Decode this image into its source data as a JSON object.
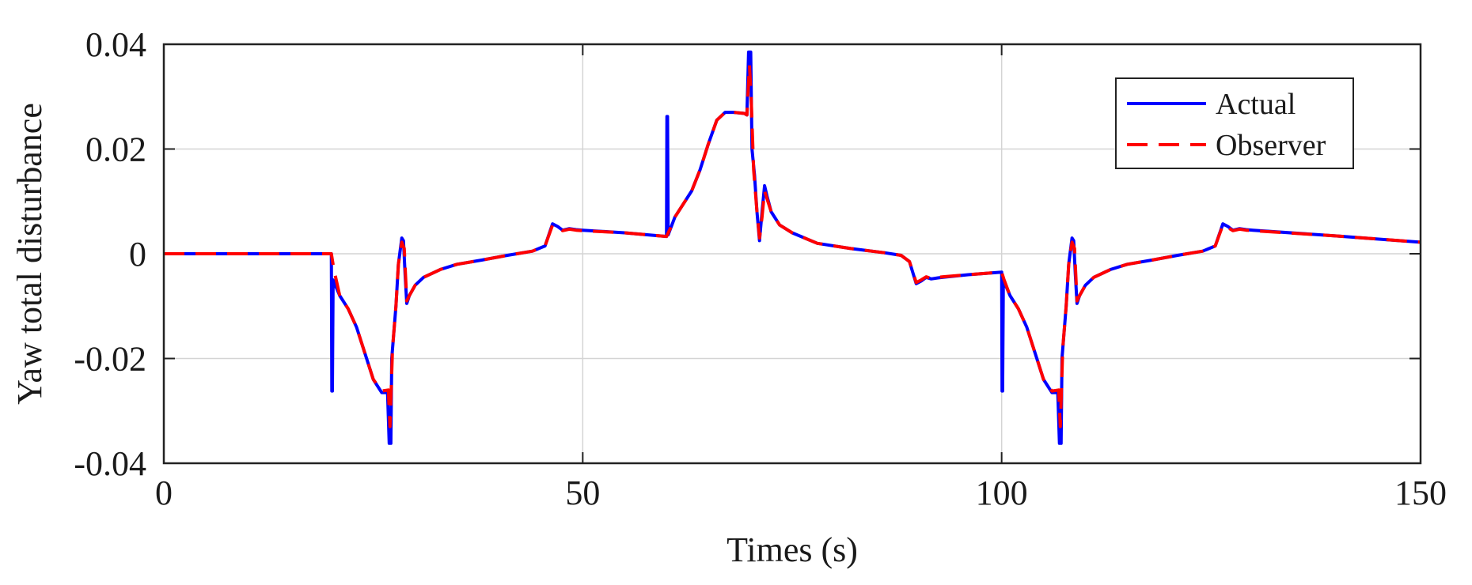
{
  "chart_data": {
    "type": "line",
    "xlabel": "Times (s)",
    "ylabel": "Yaw total disturbance",
    "xlim": [
      0,
      150
    ],
    "ylim": [
      -0.04,
      0.04
    ],
    "xticks": [
      0,
      50,
      100,
      150
    ],
    "xtick_labels": [
      "0",
      "50",
      "100",
      "150"
    ],
    "yticks": [
      0.04,
      0.02,
      0,
      -0.02,
      -0.04
    ],
    "ytick_labels": [
      "0.04",
      "0.02",
      "0",
      "-0.02",
      "-0.04"
    ],
    "grid": true,
    "legend_position": "top-right",
    "series": [
      {
        "name": "Actual",
        "color": "#0000ff",
        "style": "solid",
        "points": [
          [
            0,
            0
          ],
          [
            20,
            0
          ],
          [
            20.05,
            -0.0262
          ],
          [
            20.12,
            -0.0262
          ],
          [
            20.2,
            -0.005
          ],
          [
            21,
            -0.008
          ],
          [
            22,
            -0.0105
          ],
          [
            23,
            -0.014
          ],
          [
            24,
            -0.019
          ],
          [
            25,
            -0.024
          ],
          [
            26,
            -0.0265
          ],
          [
            26.7,
            -0.0265
          ],
          [
            26.9,
            -0.0362
          ],
          [
            27.1,
            -0.0362
          ],
          [
            27.2,
            -0.02
          ],
          [
            27.7,
            -0.01
          ],
          [
            28,
            -0.002
          ],
          [
            28.4,
            0.003
          ],
          [
            28.6,
            0.0025
          ],
          [
            28.8,
            -0.004
          ],
          [
            29,
            -0.0095
          ],
          [
            29.3,
            -0.008
          ],
          [
            30,
            -0.006
          ],
          [
            31,
            -0.0045
          ],
          [
            33,
            -0.003
          ],
          [
            35,
            -0.002
          ],
          [
            38,
            -0.0012
          ],
          [
            41,
            -0.0003
          ],
          [
            44,
            0.0005
          ],
          [
            45.5,
            0.0015
          ],
          [
            46.4,
            0.0057
          ],
          [
            47,
            0.0052
          ],
          [
            47.6,
            0.0045
          ],
          [
            48.4,
            0.0048
          ],
          [
            49.2,
            0.0046
          ],
          [
            50,
            0.0045
          ],
          [
            55,
            0.004
          ],
          [
            60,
            0.0033
          ],
          [
            60.05,
            0.0262
          ],
          [
            60.12,
            0.0262
          ],
          [
            60.2,
            0.0036
          ],
          [
            61,
            0.007
          ],
          [
            62,
            0.0095
          ],
          [
            63,
            0.012
          ],
          [
            64,
            0.016
          ],
          [
            65,
            0.021
          ],
          [
            66,
            0.0255
          ],
          [
            67,
            0.027
          ],
          [
            68,
            0.027
          ],
          [
            69.3,
            0.0268
          ],
          [
            69.6,
            0.0265
          ],
          [
            69.8,
            0.0385
          ],
          [
            70.05,
            0.0385
          ],
          [
            70.2,
            0.02
          ],
          [
            70.5,
            0.015
          ],
          [
            70.8,
            0.008
          ],
          [
            71.1,
            0.0025
          ],
          [
            71.4,
            0.008
          ],
          [
            71.7,
            0.013
          ],
          [
            72,
            0.011
          ],
          [
            72.5,
            0.008
          ],
          [
            73.5,
            0.0055
          ],
          [
            75,
            0.004
          ],
          [
            78,
            0.002
          ],
          [
            82,
            0.001
          ],
          [
            86,
            0.0002
          ],
          [
            88,
            -0.0003
          ],
          [
            89,
            -0.0015
          ],
          [
            89.8,
            -0.0057
          ],
          [
            90.4,
            -0.0052
          ],
          [
            91,
            -0.0045
          ],
          [
            91.6,
            -0.0048
          ],
          [
            92.4,
            -0.0046
          ],
          [
            93,
            -0.0045
          ],
          [
            96,
            -0.004
          ],
          [
            100,
            -0.0035
          ],
          [
            100.05,
            -0.0262
          ],
          [
            100.12,
            -0.0262
          ],
          [
            100.2,
            -0.005
          ],
          [
            101,
            -0.008
          ],
          [
            102,
            -0.0105
          ],
          [
            103,
            -0.014
          ],
          [
            104,
            -0.019
          ],
          [
            105,
            -0.024
          ],
          [
            106,
            -0.0265
          ],
          [
            106.7,
            -0.0265
          ],
          [
            106.9,
            -0.0362
          ],
          [
            107.1,
            -0.0362
          ],
          [
            107.2,
            -0.02
          ],
          [
            107.7,
            -0.01
          ],
          [
            108,
            -0.002
          ],
          [
            108.4,
            0.003
          ],
          [
            108.6,
            0.0025
          ],
          [
            108.8,
            -0.004
          ],
          [
            109,
            -0.0095
          ],
          [
            109.3,
            -0.008
          ],
          [
            110,
            -0.006
          ],
          [
            111,
            -0.0045
          ],
          [
            113,
            -0.003
          ],
          [
            115,
            -0.002
          ],
          [
            118,
            -0.0012
          ],
          [
            121,
            -0.0003
          ],
          [
            124,
            0.0005
          ],
          [
            125.5,
            0.0015
          ],
          [
            126.4,
            0.0057
          ],
          [
            127,
            0.0052
          ],
          [
            127.6,
            0.0045
          ],
          [
            128.4,
            0.0048
          ],
          [
            129.2,
            0.0046
          ],
          [
            130,
            0.0045
          ],
          [
            140,
            0.0034
          ],
          [
            150,
            0.0022
          ]
        ]
      },
      {
        "name": "Observer",
        "color": "#ff0000",
        "style": "dashed",
        "points": [
          [
            0,
            0
          ],
          [
            20,
            0
          ],
          [
            20.3,
            -0.003
          ],
          [
            21,
            -0.008
          ],
          [
            22,
            -0.0105
          ],
          [
            23,
            -0.014
          ],
          [
            24,
            -0.019
          ],
          [
            25,
            -0.024
          ],
          [
            26,
            -0.0262
          ],
          [
            26.8,
            -0.026
          ],
          [
            27,
            -0.033
          ],
          [
            27.3,
            -0.018
          ],
          [
            27.7,
            -0.01
          ],
          [
            28,
            -0.002
          ],
          [
            28.4,
            0.0022
          ],
          [
            28.7,
            0.001
          ],
          [
            29,
            -0.009
          ],
          [
            29.3,
            -0.008
          ],
          [
            30,
            -0.006
          ],
          [
            31,
            -0.0045
          ],
          [
            33,
            -0.003
          ],
          [
            35,
            -0.002
          ],
          [
            38,
            -0.0012
          ],
          [
            41,
            -0.0003
          ],
          [
            44,
            0.0005
          ],
          [
            45.5,
            0.0015
          ],
          [
            46.4,
            0.0055
          ],
          [
            47,
            0.005
          ],
          [
            47.6,
            0.0044
          ],
          [
            48.4,
            0.0047
          ],
          [
            49.2,
            0.0045
          ],
          [
            50,
            0.0044
          ],
          [
            55,
            0.004
          ],
          [
            60,
            0.0033
          ],
          [
            60.5,
            0.005
          ],
          [
            61,
            0.007
          ],
          [
            62,
            0.0095
          ],
          [
            63,
            0.012
          ],
          [
            64,
            0.016
          ],
          [
            65,
            0.021
          ],
          [
            66,
            0.0255
          ],
          [
            67,
            0.027
          ],
          [
            68,
            0.027
          ],
          [
            69.3,
            0.0268
          ],
          [
            69.6,
            0.0265
          ],
          [
            69.9,
            0.036
          ],
          [
            70.1,
            0.03
          ],
          [
            70.4,
            0.016
          ],
          [
            70.8,
            0.008
          ],
          [
            71.1,
            0.003
          ],
          [
            71.4,
            0.007
          ],
          [
            71.7,
            0.012
          ],
          [
            72,
            0.0105
          ],
          [
            72.5,
            0.008
          ],
          [
            73.5,
            0.0055
          ],
          [
            75,
            0.004
          ],
          [
            78,
            0.002
          ],
          [
            82,
            0.001
          ],
          [
            86,
            0.0002
          ],
          [
            88,
            -0.0003
          ],
          [
            89,
            -0.0015
          ],
          [
            89.8,
            -0.0055
          ],
          [
            90.4,
            -0.005
          ],
          [
            91,
            -0.0044
          ],
          [
            91.6,
            -0.0047
          ],
          [
            92.4,
            -0.0045
          ],
          [
            93,
            -0.0044
          ],
          [
            96,
            -0.004
          ],
          [
            100,
            -0.0035
          ],
          [
            100.3,
            -0.005
          ],
          [
            101,
            -0.008
          ],
          [
            102,
            -0.0105
          ],
          [
            103,
            -0.014
          ],
          [
            104,
            -0.019
          ],
          [
            105,
            -0.024
          ],
          [
            106,
            -0.0262
          ],
          [
            106.8,
            -0.026
          ],
          [
            107,
            -0.033
          ],
          [
            107.3,
            -0.018
          ],
          [
            107.7,
            -0.01
          ],
          [
            108,
            -0.002
          ],
          [
            108.4,
            0.0022
          ],
          [
            108.7,
            0.001
          ],
          [
            109,
            -0.009
          ],
          [
            109.3,
            -0.008
          ],
          [
            110,
            -0.006
          ],
          [
            111,
            -0.0045
          ],
          [
            113,
            -0.003
          ],
          [
            115,
            -0.002
          ],
          [
            118,
            -0.0012
          ],
          [
            121,
            -0.0003
          ],
          [
            124,
            0.0005
          ],
          [
            125.5,
            0.0015
          ],
          [
            126.4,
            0.0055
          ],
          [
            127,
            0.005
          ],
          [
            127.6,
            0.0044
          ],
          [
            128.4,
            0.0047
          ],
          [
            129.2,
            0.0045
          ],
          [
            130,
            0.0044
          ],
          [
            140,
            0.0034
          ],
          [
            150,
            0.0022
          ]
        ]
      }
    ]
  }
}
